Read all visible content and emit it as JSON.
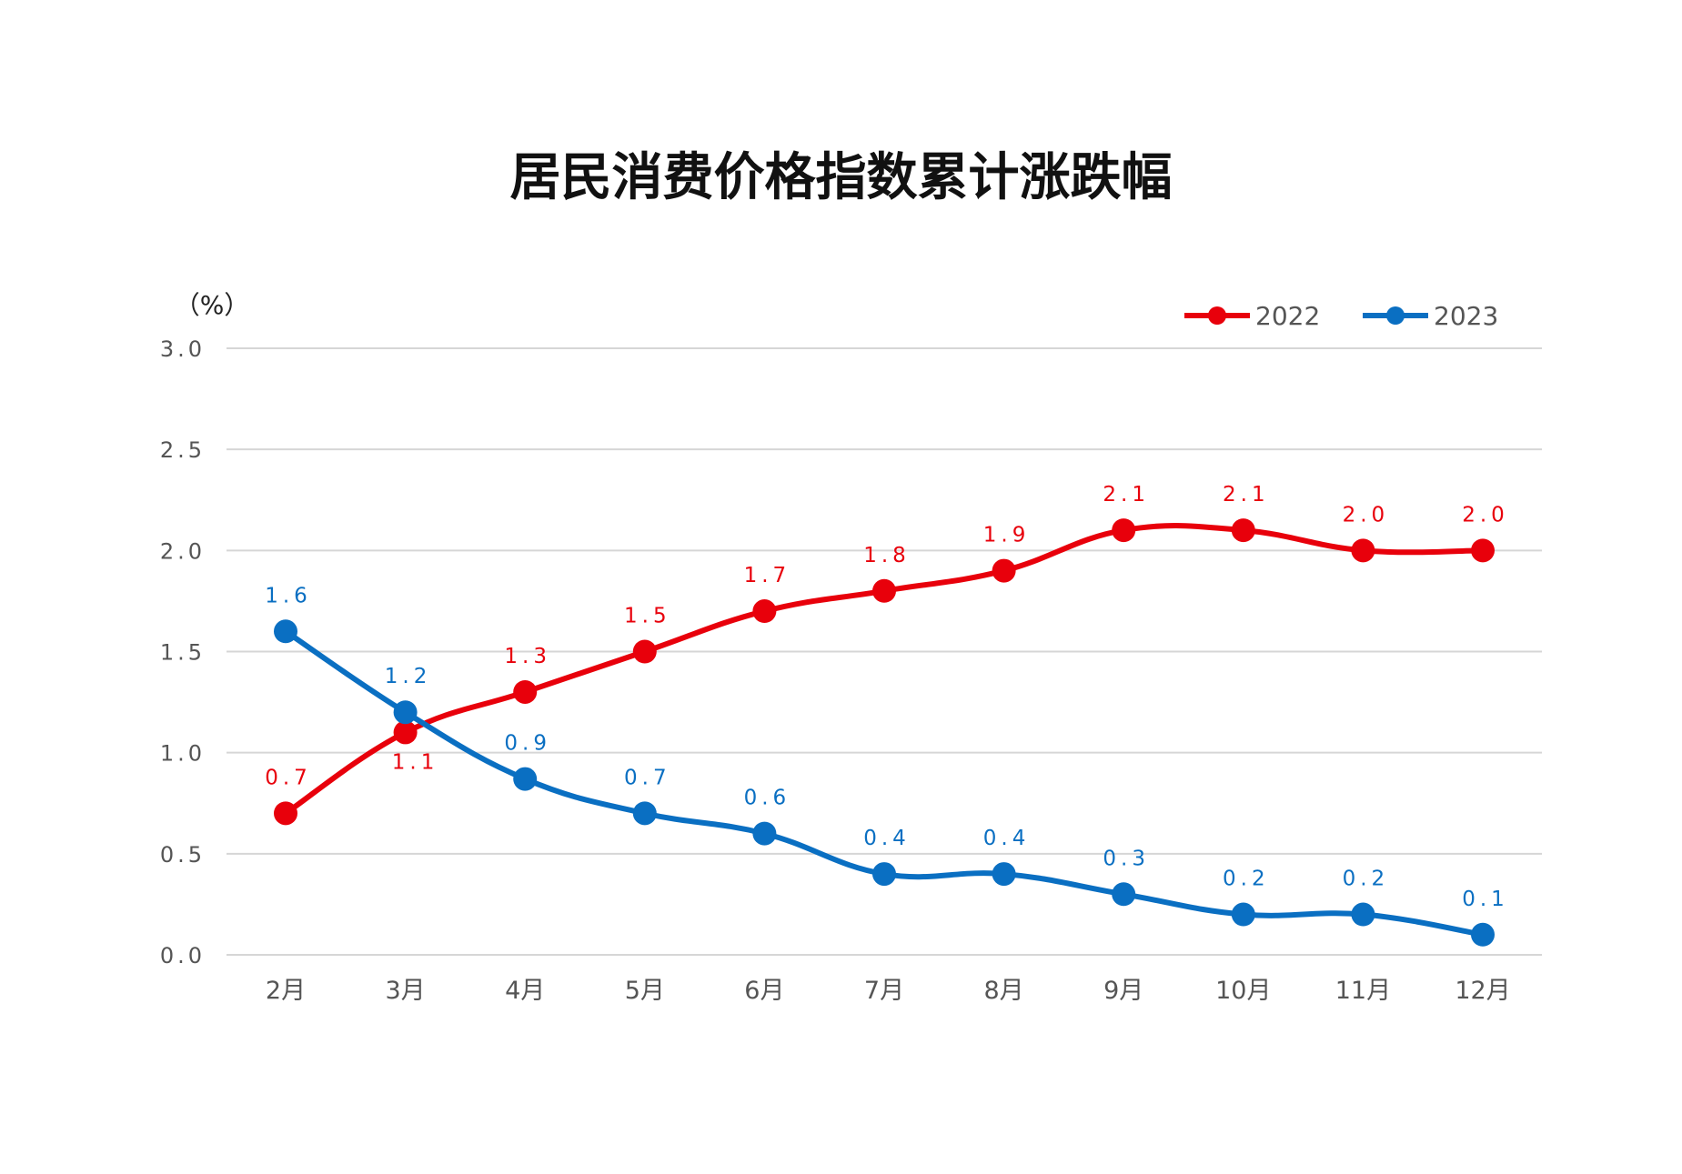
{
  "chart_data": {
    "type": "line",
    "title": "居民消费价格指数累计涨跌幅",
    "ylabel": "（%）",
    "xlabel": "",
    "categories": [
      "2月",
      "3月",
      "4月",
      "5月",
      "6月",
      "7月",
      "8月",
      "9月",
      "10月",
      "11月",
      "12月"
    ],
    "ylim": [
      0,
      3.0
    ],
    "yticks": [
      "0.0",
      "0.5",
      "1.0",
      "1.5",
      "2.0",
      "2.5",
      "3.0"
    ],
    "grid": true,
    "legend": "top-right",
    "series": [
      {
        "name": "2022",
        "color": "#e8000b",
        "values": [
          0.7,
          1.1,
          1.3,
          1.5,
          1.7,
          1.8,
          1.9,
          2.1,
          2.1,
          2.0,
          2.0
        ],
        "labels": [
          "0.7",
          "1.1",
          "1.3",
          "1.5",
          "1.7",
          "1.8",
          "1.9",
          "2.1",
          "2.1",
          "2.0",
          "2.0"
        ]
      },
      {
        "name": "2023",
        "color": "#0a6fc2",
        "values": [
          1.6,
          1.2,
          0.87,
          0.7,
          0.6,
          0.4,
          0.4,
          0.3,
          0.2,
          0.2,
          0.1
        ],
        "labels": [
          "1.6",
          "1.2",
          "0.9",
          "0.7",
          "0.6",
          "0.4",
          "0.4",
          "0.3",
          "0.2",
          "0.2",
          "0.1"
        ]
      }
    ]
  }
}
